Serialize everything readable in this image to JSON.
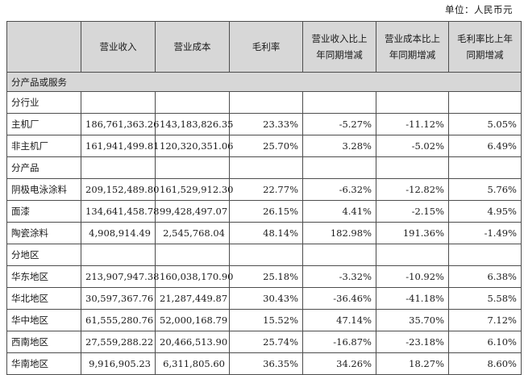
{
  "unit_label": "单位：人民币元",
  "headers": [
    "",
    "营业收入",
    "营业成本",
    "毛利率",
    "营业收入比上年同期增减",
    "营业成本比上年同期增减",
    "毛利率比上年同期增减"
  ],
  "sections": [
    {
      "title": "分产品或服务",
      "shaded": true,
      "rows": []
    },
    {
      "title": "分行业",
      "shaded": false,
      "rows": [
        {
          "name": "主机厂",
          "cells": [
            "186,761,363.26",
            "143,183,826.35",
            "23.33%",
            "-5.27%",
            "-11.12%",
            "5.05%"
          ]
        },
        {
          "name": "非主机厂",
          "cells": [
            "161,941,499.81",
            "120,320,351.06",
            "25.70%",
            "3.28%",
            "-5.02%",
            "6.49%"
          ]
        }
      ]
    },
    {
      "title": "分产品",
      "shaded": false,
      "rows": [
        {
          "name": "阴极电泳涂料",
          "cells": [
            "209,152,489.80",
            "161,529,912.30",
            "22.77%",
            "-6.32%",
            "-12.82%",
            "5.76%"
          ]
        },
        {
          "name": "面漆",
          "cells": [
            "134,641,458.78",
            "99,428,497.07",
            "26.15%",
            "4.41%",
            "-2.15%",
            "4.95%"
          ]
        },
        {
          "name": "陶瓷涂料",
          "cells": [
            "4,908,914.49",
            "2,545,768.04",
            "48.14%",
            "182.98%",
            "191.36%",
            "-1.49%"
          ]
        }
      ]
    },
    {
      "title": "分地区",
      "shaded": false,
      "rows": [
        {
          "name": "华东地区",
          "cells": [
            "213,907,947.38",
            "160,038,170.90",
            "25.18%",
            "-3.32%",
            "-10.92%",
            "6.38%"
          ]
        },
        {
          "name": "华北地区",
          "cells": [
            "30,597,367.76",
            "21,287,449.87",
            "30.43%",
            "-36.46%",
            "-41.18%",
            "5.58%"
          ]
        },
        {
          "name": "华中地区",
          "cells": [
            "61,555,280.76",
            "52,000,168.79",
            "15.52%",
            "47.14%",
            "35.70%",
            "7.12%"
          ]
        },
        {
          "name": "西南地区",
          "cells": [
            "27,559,288.22",
            "20,466,513.90",
            "25.74%",
            "-16.87%",
            "-23.18%",
            "6.10%"
          ]
        },
        {
          "name": "华南地区",
          "cells": [
            "9,916,905.23",
            "6,311,805.60",
            "36.35%",
            "34.26%",
            "18.27%",
            "8.60%"
          ]
        }
      ]
    }
  ]
}
